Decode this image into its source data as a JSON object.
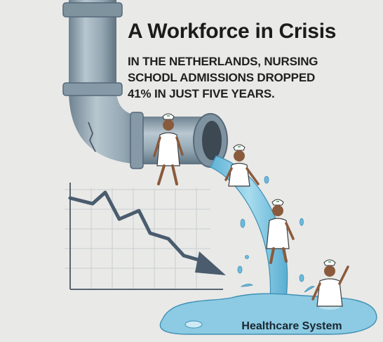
{
  "headline": {
    "title": "A Workforce in Crisis",
    "subtitle_lines": [
      "IN THE NETHERLANDS, NURSING",
      "SCHODL ADMISSIONS DROPPED",
      "41% IN JUST FIVE YEARS."
    ]
  },
  "caption": "Healthcare System",
  "icons": [
    "pipe-icon",
    "nurse-icon",
    "declining-chart-icon",
    "water-puddle-icon"
  ],
  "colors": {
    "background": "#e9e9e7",
    "pipe": "#8fa3b0",
    "water": "#7cc3df",
    "trend_line": "#4a5c6d",
    "nurse_uniform": "#ffffff",
    "cap_cross": "#3d9a5a"
  }
}
